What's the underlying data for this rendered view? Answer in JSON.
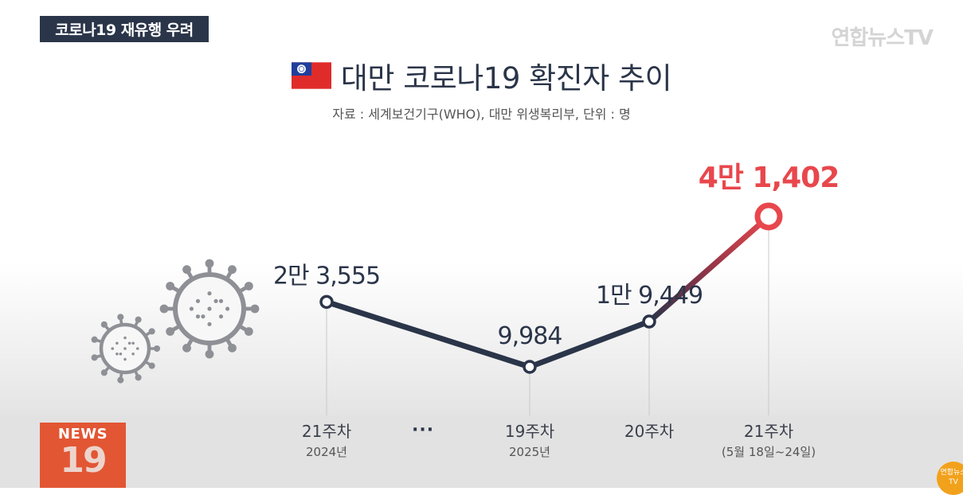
{
  "header": {
    "tag": "코로나19 재유행 우려",
    "logo": "연합뉴스TV",
    "title": "대만 코로나19 확진자 추이",
    "source": "자료 : 세계보건기구(WHO), 대만 위생복리부, 단위 : 명"
  },
  "badge": {
    "label": "NEWS",
    "number": "19"
  },
  "corner_logo": "연합뉴스TV",
  "ellipsis": "···",
  "colors": {
    "line": "#2b3549",
    "highlight": "#e8474c",
    "accent_text": "#e8474c"
  },
  "icons": [
    "taiwan-flag-icon",
    "virus-icon"
  ],
  "chart_data": {
    "type": "line",
    "categories": [
      "21주차",
      "19주차",
      "20주차",
      "21주차"
    ],
    "category_sublabels": [
      "2024년",
      "2025년",
      "",
      "(5월 18일~24일)"
    ],
    "values": [
      23555,
      9984,
      19449,
      41402
    ],
    "value_labels": [
      "2만 3,555",
      "9,984",
      "1만 9,449",
      "4만 1,402"
    ],
    "highlight_index": 3,
    "unit": "명",
    "grid": false
  }
}
